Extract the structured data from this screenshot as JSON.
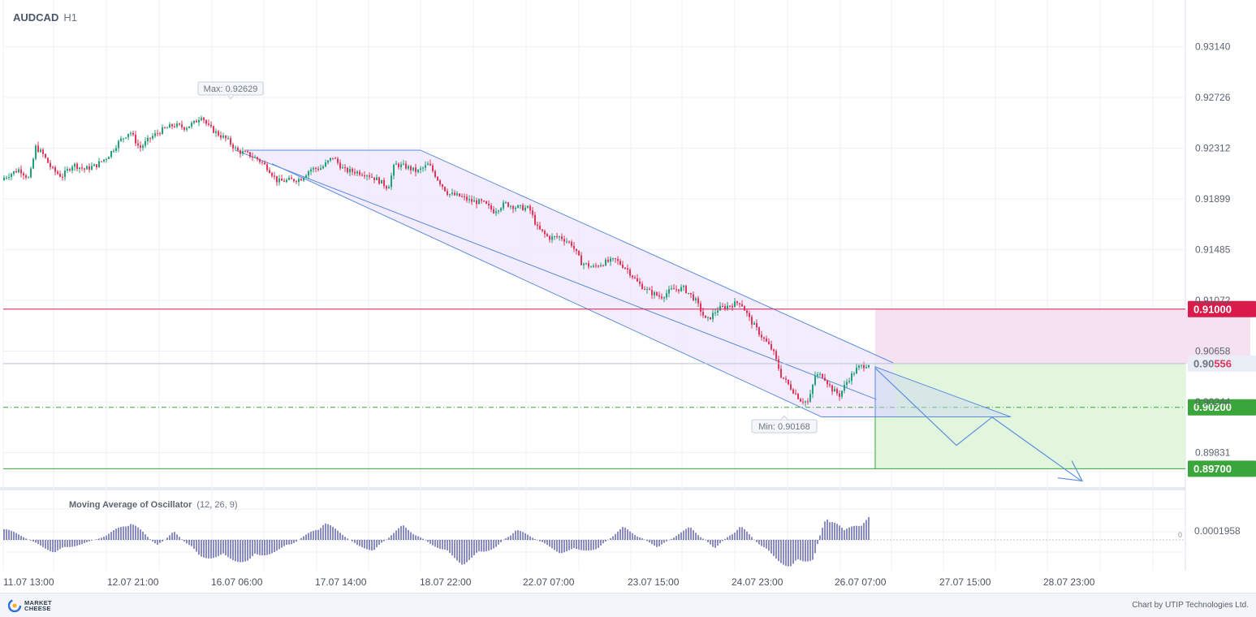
{
  "header": {
    "symbol": "AUDCAD",
    "timeframe": "H1"
  },
  "chart_data": {
    "type": "candlestick",
    "y_axis": {
      "ticks": [
        "0.93140",
        "0.92726",
        "0.92312",
        "0.91899",
        "0.91485",
        "0.91072",
        "0.90658",
        "0.90244",
        "0.89831"
      ],
      "range": [
        0.8955,
        0.934
      ]
    },
    "x_axis": {
      "labels": [
        "11.07 13:00",
        "12.07 21:00",
        "16.07 06:00",
        "17.07 14:00",
        "18.07 22:00",
        "22.07 07:00",
        "23.07 15:00",
        "24.07 23:00",
        "26.07 07:00",
        "27.07 15:00",
        "28.07 23:00"
      ]
    },
    "price_path": [
      [
        0,
        0.9205
      ],
      [
        12,
        0.921
      ],
      [
        24,
        0.9214
      ],
      [
        36,
        0.9206
      ],
      [
        44,
        0.9232
      ],
      [
        52,
        0.9227
      ],
      [
        64,
        0.9214
      ],
      [
        76,
        0.9208
      ],
      [
        90,
        0.9218
      ],
      [
        104,
        0.9214
      ],
      [
        118,
        0.9217
      ],
      [
        132,
        0.9224
      ],
      [
        146,
        0.9236
      ],
      [
        160,
        0.9245
      ],
      [
        172,
        0.9231
      ],
      [
        186,
        0.924
      ],
      [
        200,
        0.9246
      ],
      [
        214,
        0.925
      ],
      [
        228,
        0.9248
      ],
      [
        240,
        0.9252
      ],
      [
        248,
        0.9258
      ],
      [
        256,
        0.9249
      ],
      [
        268,
        0.9243
      ],
      [
        280,
        0.9238
      ],
      [
        292,
        0.9229
      ],
      [
        306,
        0.9226
      ],
      [
        318,
        0.9222
      ],
      [
        330,
        0.9215
      ],
      [
        342,
        0.9204
      ],
      [
        356,
        0.9205
      ],
      [
        370,
        0.9206
      ],
      [
        382,
        0.9214
      ],
      [
        396,
        0.9215
      ],
      [
        410,
        0.9224
      ],
      [
        424,
        0.9213
      ],
      [
        438,
        0.9212
      ],
      [
        452,
        0.921
      ],
      [
        466,
        0.9205
      ],
      [
        478,
        0.9199
      ],
      [
        486,
        0.9218
      ],
      [
        500,
        0.9216
      ],
      [
        514,
        0.9212
      ],
      [
        528,
        0.9218
      ],
      [
        540,
        0.9205
      ],
      [
        552,
        0.9194
      ],
      [
        566,
        0.9192
      ],
      [
        580,
        0.9188
      ],
      [
        594,
        0.9187
      ],
      [
        608,
        0.918
      ],
      [
        622,
        0.9186
      ],
      [
        636,
        0.9183
      ],
      [
        652,
        0.9182
      ],
      [
        662,
        0.9166
      ],
      [
        676,
        0.9158
      ],
      [
        690,
        0.9159
      ],
      [
        704,
        0.9153
      ],
      [
        716,
        0.9138
      ],
      [
        730,
        0.9134
      ],
      [
        744,
        0.9138
      ],
      [
        758,
        0.914
      ],
      [
        772,
        0.9133
      ],
      [
        786,
        0.9121
      ],
      [
        800,
        0.9114
      ],
      [
        814,
        0.911
      ],
      [
        828,
        0.9116
      ],
      [
        842,
        0.9117
      ],
      [
        856,
        0.9108
      ],
      [
        870,
        0.909
      ],
      [
        884,
        0.91
      ],
      [
        898,
        0.9103
      ],
      [
        912,
        0.9106
      ],
      [
        924,
        0.9091
      ],
      [
        938,
        0.9078
      ],
      [
        952,
        0.9066
      ],
      [
        962,
        0.9046
      ],
      [
        974,
        0.9036
      ],
      [
        986,
        0.9026
      ],
      [
        996,
        0.9024
      ],
      [
        1004,
        0.9046
      ],
      [
        1014,
        0.9046
      ],
      [
        1024,
        0.9035
      ],
      [
        1034,
        0.903
      ],
      [
        1044,
        0.9042
      ],
      [
        1056,
        0.9052
      ],
      [
        1070,
        0.90556
      ]
    ],
    "price_max": {
      "label": "Max: 0.92629"
    },
    "price_min": {
      "label": "Min: 0.90168"
    },
    "channel": {
      "upper": [
        [
          303,
          0.92295
        ],
        [
          1100,
          0.90563
        ]
      ],
      "middle": [
        [
          290,
          0.92295
        ],
        [
          1080,
          0.90263
        ]
      ],
      "lower": [
        [
          335,
          0.92185
        ],
        [
          1105,
          0.90122
        ]
      ],
      "top_edge": [
        [
          303,
          0.92295
        ],
        [
          518,
          0.92295
        ]
      ],
      "bottom_edge": [
        [
          1012,
          0.90122
        ],
        [
          1105,
          0.90122
        ]
      ]
    },
    "levels": [
      {
        "name": "take-profit-upper",
        "value": 0.91,
        "label": "0.91000",
        "color": "#d81b4b",
        "style": "solid"
      },
      {
        "name": "current-price",
        "value": 0.90556,
        "label_plain": "0.90",
        "label_red": "556",
        "color": "#b9c1d3",
        "style": "solid"
      },
      {
        "name": "target",
        "value": 0.902,
        "label": "0.90200",
        "color": "#3aa53a",
        "style": "dashdot"
      },
      {
        "name": "stop-lower",
        "value": 0.897,
        "label": "0.89700",
        "color": "#3aa53a",
        "style": "solid"
      }
    ],
    "forecast": {
      "pink_zone": {
        "from": 0.90556,
        "to": 0.91,
        "x_start": 1078
      },
      "green_zone": {
        "from": 0.897,
        "to": 0.90556,
        "x_start": 1078
      },
      "triangle": [
        [
          1078,
          0.9053
        ],
        [
          1245,
          0.90122
        ],
        [
          1078,
          0.90122
        ]
      ],
      "zigzag": [
        [
          1078,
          0.9052
        ],
        [
          1178,
          0.8989
        ],
        [
          1222,
          0.9012
        ],
        [
          1332,
          0.896
        ]
      ],
      "arrow_head": [
        [
          1303,
          0.89625
        ],
        [
          1333,
          0.896
        ],
        [
          1320,
          0.89765
        ]
      ]
    },
    "oscillator": {
      "title": "Moving Average of Oscillator",
      "params": "(12, 26, 9)",
      "tick_label": "0.0001958",
      "zero_label": "0",
      "phases": [
        [
          0,
          16
        ],
        [
          67,
          -14
        ],
        [
          130,
          4
        ],
        [
          160,
          22
        ],
        [
          194,
          -7
        ],
        [
          214,
          9
        ],
        [
          246,
          -18
        ],
        [
          306,
          -24
        ],
        [
          360,
          -5
        ],
        [
          400,
          20
        ],
        [
          440,
          -6
        ],
        [
          460,
          -12
        ],
        [
          496,
          16
        ],
        [
          530,
          -4
        ],
        [
          570,
          -26
        ],
        [
          610,
          -8
        ],
        [
          636,
          12
        ],
        [
          690,
          -14
        ],
        [
          736,
          -10
        ],
        [
          768,
          14
        ],
        [
          810,
          -8
        ],
        [
          850,
          14
        ],
        [
          880,
          -9
        ],
        [
          912,
          16
        ],
        [
          940,
          -10
        ],
        [
          975,
          -32
        ],
        [
          1002,
          -20
        ],
        [
          1018,
          30
        ],
        [
          1040,
          10
        ],
        [
          1070,
          26
        ]
      ]
    }
  },
  "footer": {
    "brand_line1": "MARKET",
    "brand_line2": "CHEESE",
    "credit": "Chart by UTIP Technologies Ltd."
  }
}
